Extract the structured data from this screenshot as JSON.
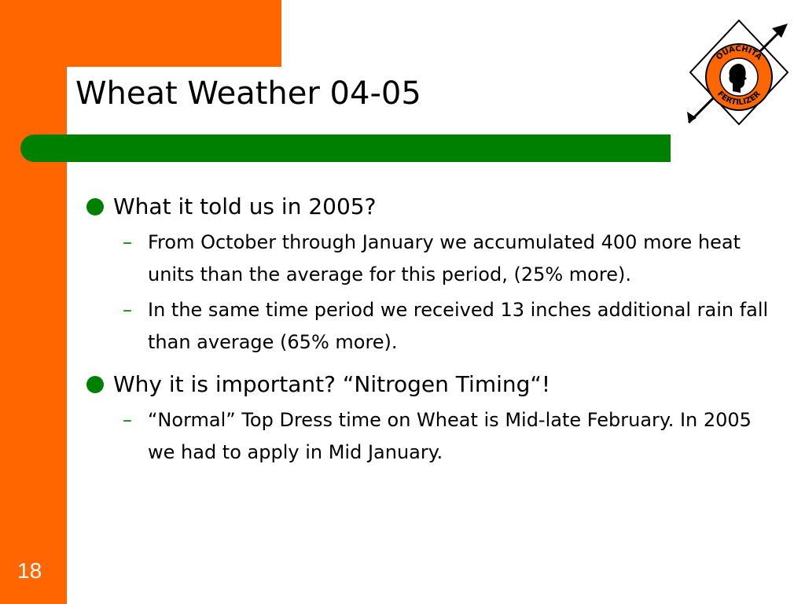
{
  "slide": {
    "title": "Wheat Weather 04-05",
    "page_number": "18",
    "colors": {
      "accent": "#ff6600",
      "bar": "#008000",
      "bullet": "#008000"
    }
  },
  "logo": {
    "top_text": "OUACHITA",
    "bottom_text": "FERTILIZER"
  },
  "bullets": [
    {
      "text": "What it told us in 2005?",
      "subs": [
        {
          "text": "From October through January we accumulated 400 more heat units than the average for this period, (25% more)."
        },
        {
          "text": "In the same time period we received 13 inches additional rain fall than average  (65% more)."
        }
      ]
    },
    {
      "text": "Why it is important?  “Nitrogen Timing“!",
      "subs": [
        {
          "text": " “Normal” Top Dress time on Wheat is Mid-late February.  In 2005 we had to apply in Mid January."
        }
      ]
    }
  ]
}
